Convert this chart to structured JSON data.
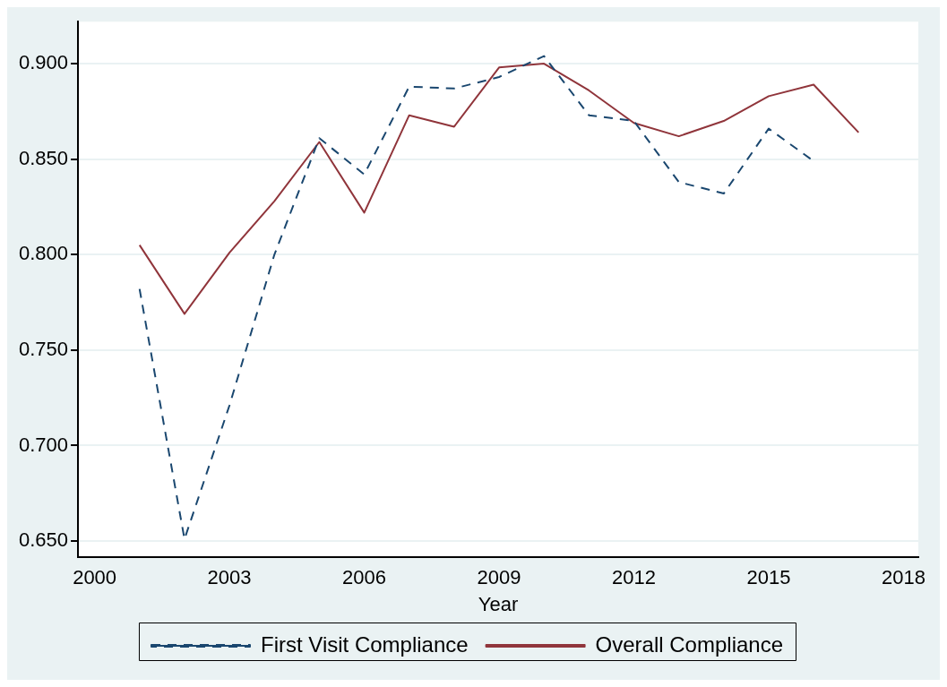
{
  "chart_data": {
    "type": "line",
    "xlabel": "Year",
    "x": [
      2001,
      2002,
      2003,
      2004,
      2005,
      2006,
      2007,
      2008,
      2009,
      2010,
      2011,
      2012,
      2013,
      2014,
      2015,
      2016,
      2017
    ],
    "series": [
      {
        "name": "First Visit Compliance",
        "color": "#1a476f",
        "line_style": "dashed",
        "values": [
          0.782,
          0.651,
          0.721,
          0.8,
          0.861,
          0.842,
          0.888,
          0.887,
          0.893,
          0.904,
          0.873,
          0.87,
          0.838,
          0.832,
          0.866,
          0.849,
          null
        ]
      },
      {
        "name": "Overall Compliance",
        "color": "#90353b",
        "line_style": "solid",
        "values": [
          0.805,
          0.769,
          0.801,
          0.828,
          0.859,
          0.822,
          0.873,
          0.867,
          0.898,
          0.9,
          0.886,
          0.869,
          0.862,
          0.87,
          0.883,
          0.889,
          0.864
        ]
      }
    ],
    "xlim": [
      1999.63,
      2018.33
    ],
    "xticks": [
      2000,
      2003,
      2006,
      2009,
      2012,
      2015,
      2018
    ],
    "ylim": [
      0.6415,
      0.922
    ],
    "yticks": [
      {
        "value": 0.65,
        "label": "0.650"
      },
      {
        "value": 0.7,
        "label": "0.700"
      },
      {
        "value": 0.75,
        "label": "0.750"
      },
      {
        "value": 0.8,
        "label": "0.800"
      },
      {
        "value": 0.85,
        "label": "0.850"
      },
      {
        "value": 0.9,
        "label": "0.900"
      }
    ],
    "grid": "y",
    "legend": "bottom",
    "marker": "none"
  }
}
